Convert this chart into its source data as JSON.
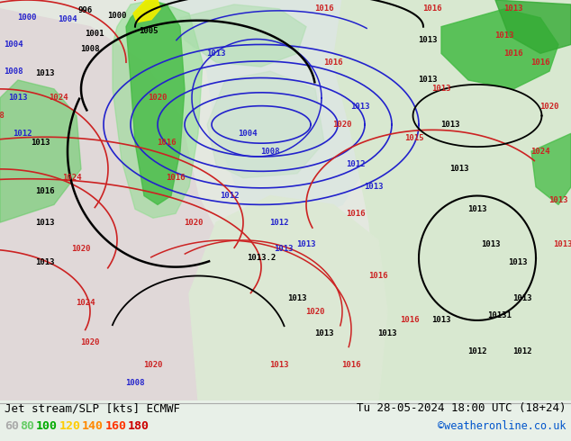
{
  "title_left": "Jet stream/SLP [kts] ECMWF",
  "title_right": "Tu 28-05-2024 18:00 UTC (18+24)",
  "credit": "©weatheronline.co.uk",
  "legend_values": [
    "60",
    "80",
    "100",
    "120",
    "140",
    "160",
    "180"
  ],
  "legend_colors": [
    "#aaaaaa",
    "#66cc66",
    "#00aa00",
    "#ffcc00",
    "#ff8800",
    "#ff3300",
    "#cc0000"
  ],
  "bg_color": "#e8f0e8",
  "map_bg": "#e0ece0",
  "fig_width": 6.34,
  "fig_height": 4.9,
  "dpi": 100,
  "bottom_bar_color": "#ffffff",
  "title_font_size": 9,
  "credit_color": "#0055cc",
  "credit_font_size": 8,
  "map_bg_light": "#dce8dc",
  "map_bg_lighter": "#f0f4f0",
  "jet_green_dark": "#22aa22",
  "jet_green_mid": "#66cc44",
  "jet_green_light": "#aaddaa",
  "jet_yellow": "#eeee00",
  "isobar_blue": "#2222cc",
  "isobar_red": "#cc2222",
  "isobar_black": "#111111"
}
